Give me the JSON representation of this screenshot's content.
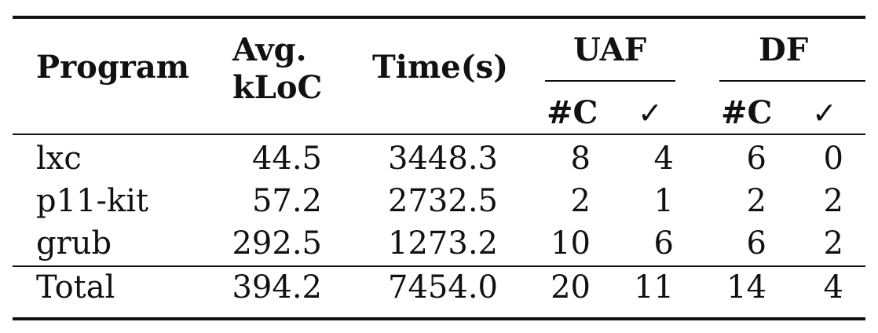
{
  "headers": {
    "program": "Program",
    "avg_kloc_line1": "Avg.",
    "avg_kloc_line2": "kLoC",
    "time": "Time(s)",
    "uaf": "UAF",
    "df": "DF",
    "count": "#C",
    "confirmed": "✓"
  },
  "rows": [
    {
      "program": "lxc",
      "kloc": "44.5",
      "time": "3448.3",
      "uaf_c": "8",
      "uaf_ok": "4",
      "df_c": "6",
      "df_ok": "0"
    },
    {
      "program": "p11-kit",
      "kloc": "57.2",
      "time": "2732.5",
      "uaf_c": "2",
      "uaf_ok": "1",
      "df_c": "2",
      "df_ok": "2"
    },
    {
      "program": "grub",
      "kloc": "292.5",
      "time": "1273.2",
      "uaf_c": "10",
      "uaf_ok": "6",
      "df_c": "6",
      "df_ok": "2"
    }
  ],
  "total": {
    "program": "Total",
    "kloc": "394.2",
    "time": "7454.0",
    "uaf_c": "20",
    "uaf_ok": "11",
    "df_c": "14",
    "df_ok": "4"
  }
}
